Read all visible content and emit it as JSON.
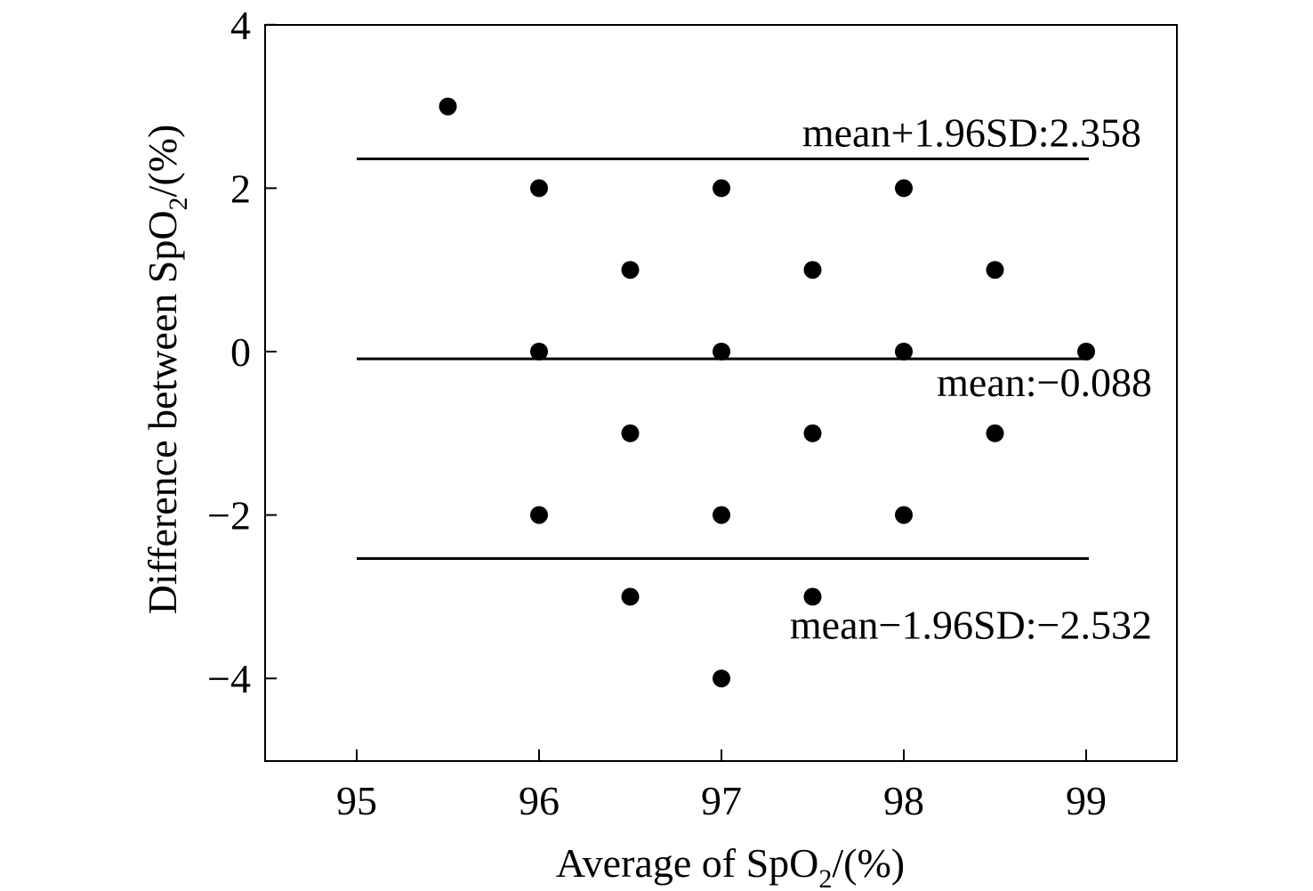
{
  "chart_data": {
    "type": "scatter",
    "title": "",
    "xlabel": {
      "prefix": "Average of SpO",
      "subscript": "2",
      "suffix": "/(%)"
    },
    "ylabel": {
      "prefix": "Difference between SpO",
      "subscript": "2",
      "suffix": "/(%)"
    },
    "xlim": [
      94.5,
      99.5
    ],
    "ylim": [
      -5,
      4
    ],
    "x_ticks": [
      95,
      96,
      97,
      98,
      99
    ],
    "y_ticks": [
      4,
      2,
      0,
      -2,
      -4
    ],
    "y_tick_labels": [
      "4",
      "2",
      "0",
      "−2",
      "−4"
    ],
    "grid": false,
    "points": [
      {
        "x": 95.5,
        "y": 3
      },
      {
        "x": 96,
        "y": 2
      },
      {
        "x": 97,
        "y": 2
      },
      {
        "x": 98,
        "y": 2
      },
      {
        "x": 96.5,
        "y": 1
      },
      {
        "x": 97.5,
        "y": 1
      },
      {
        "x": 98.5,
        "y": 1
      },
      {
        "x": 96,
        "y": 0
      },
      {
        "x": 97,
        "y": 0
      },
      {
        "x": 98,
        "y": 0
      },
      {
        "x": 99,
        "y": 0
      },
      {
        "x": 96.5,
        "y": -1
      },
      {
        "x": 97.5,
        "y": -1
      },
      {
        "x": 98.5,
        "y": -1
      },
      {
        "x": 96,
        "y": -2
      },
      {
        "x": 97,
        "y": -2
      },
      {
        "x": 98,
        "y": -2
      },
      {
        "x": 96.5,
        "y": -3
      },
      {
        "x": 97.5,
        "y": -3
      },
      {
        "x": 97,
        "y": -4
      }
    ],
    "reference_lines": [
      {
        "y": 2.358,
        "x_start": 95,
        "x_end": 99,
        "label": "mean+1.96SD:2.358"
      },
      {
        "y": -0.088,
        "x_start": 95,
        "x_end": 99,
        "label": "mean:−0.088"
      },
      {
        "y": -2.532,
        "x_start": 95,
        "x_end": 99,
        "label": "mean−1.96SD:−2.532"
      }
    ],
    "colors": {
      "points": "#000000",
      "lines": "#000000",
      "text": "#000000"
    }
  }
}
